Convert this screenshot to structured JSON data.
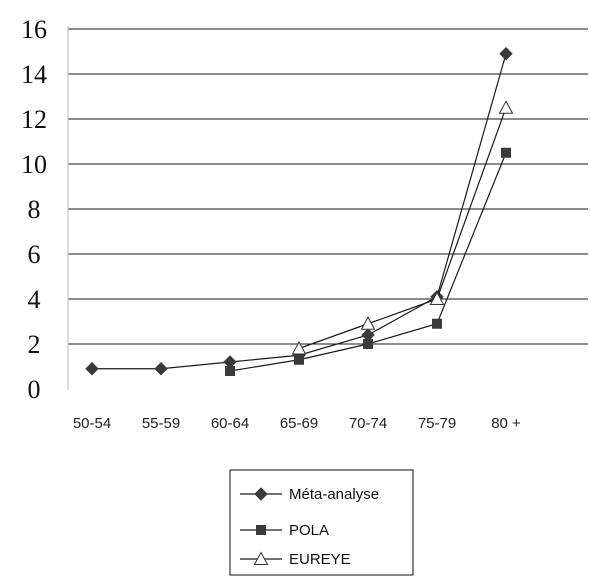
{
  "chart_data": {
    "type": "line",
    "categories": [
      "50-54",
      "55-59",
      "60-64",
      "65-69",
      "70-74",
      "75-79",
      "80 +"
    ],
    "yticks": [
      0,
      2,
      4,
      6,
      8,
      10,
      12,
      14,
      16
    ],
    "ylim": [
      0,
      16
    ],
    "grid": true,
    "legend_position": "bottom",
    "series": [
      {
        "name": "Méta-analyse",
        "marker": "diamond",
        "values": [
          0.9,
          0.9,
          1.2,
          1.5,
          2.4,
          4.1,
          14.9
        ]
      },
      {
        "name": "POLA",
        "marker": "square",
        "values": [
          null,
          null,
          0.8,
          1.3,
          2.0,
          2.9,
          10.5
        ]
      },
      {
        "name": "EUREYE",
        "marker": "triangle-open",
        "values": [
          null,
          null,
          null,
          1.8,
          2.9,
          4.0,
          12.5
        ]
      }
    ],
    "colors": {
      "line": "#1a1a1a",
      "grid": "#1a1a1a",
      "marker": "#3a3a3a"
    }
  }
}
